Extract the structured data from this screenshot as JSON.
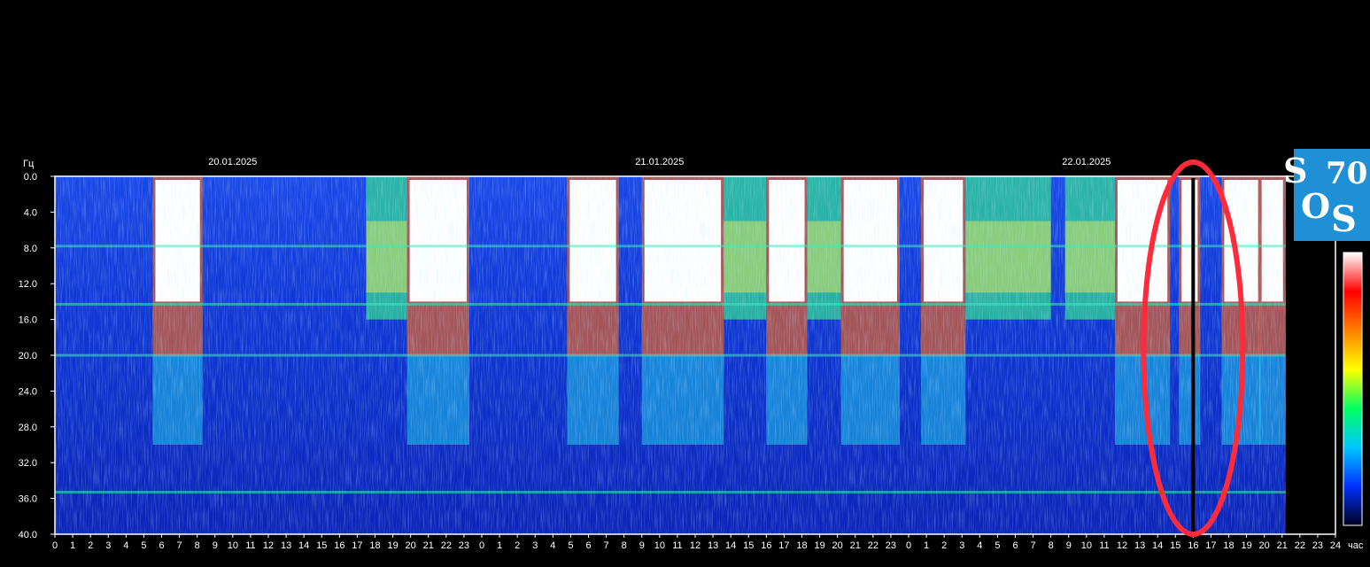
{
  "chart_data": {
    "type": "heatmap",
    "ylabel": "Гц",
    "xlabel": "час",
    "y_ticks": [
      "0.0",
      "4.0",
      "8.0",
      "12.0",
      "16.0",
      "20.0",
      "24.0",
      "28.0",
      "32.0",
      "36.0",
      "40.0"
    ],
    "ylim": [
      0,
      40
    ],
    "x_ticks": [
      "0",
      "1",
      "2",
      "3",
      "4",
      "5",
      "6",
      "7",
      "8",
      "9",
      "10",
      "11",
      "12",
      "13",
      "14",
      "15",
      "16",
      "17",
      "18",
      "19",
      "20",
      "21",
      "22",
      "23",
      "0",
      "1",
      "2",
      "3",
      "4",
      "5",
      "6",
      "7",
      "8",
      "9",
      "10",
      "11",
      "12",
      "13",
      "14",
      "15",
      "16",
      "17",
      "18",
      "19",
      "20",
      "21",
      "22",
      "23",
      "0",
      "1",
      "2",
      "3",
      "4",
      "5",
      "6",
      "7",
      "8",
      "9",
      "10",
      "11",
      "12",
      "13",
      "14",
      "15",
      "16",
      "17",
      "18",
      "19",
      "20",
      "21",
      "22",
      "23",
      "24"
    ],
    "dates": [
      {
        "label": "20.01.2025",
        "day_index": 0
      },
      {
        "label": "21.01.2025",
        "day_index": 1
      },
      {
        "label": "22.01.2025",
        "day_index": 2
      }
    ],
    "data_end_hour": 69.2,
    "bright_intervals_hours": [
      [
        5.5,
        8.3
      ],
      [
        19.8,
        23.3
      ],
      [
        28.8,
        31.7
      ],
      [
        33.0,
        37.6
      ],
      [
        40.0,
        42.3
      ],
      [
        44.2,
        47.5
      ],
      [
        48.7,
        51.2
      ],
      [
        59.6,
        62.7
      ],
      [
        63.2,
        64.4
      ],
      [
        65.6,
        67.8
      ],
      [
        67.7,
        69.2
      ]
    ],
    "moderate_intervals_hours": [
      [
        17.5,
        19.8
      ],
      [
        37.6,
        40.0
      ],
      [
        42.3,
        44.2
      ],
      [
        51.2,
        56.0
      ],
      [
        56.8,
        59.6
      ]
    ],
    "black_gap_hours": [
      63.9,
      64.1
    ],
    "horizontal_bands_hz": [
      7.8,
      14.3,
      20.0,
      35.3
    ],
    "colorbar": [
      "#000020",
      "#0030ff",
      "#00c8ff",
      "#00ff60",
      "#ffff00",
      "#ff8000",
      "#ff0000",
      "#ffffff"
    ],
    "annotation": {
      "shape": "ellipse",
      "color": "#ff2a3a",
      "center_hour": 64.0
    }
  },
  "logo": {
    "s_top": "S",
    "number": "70",
    "o": "O",
    "s_bottom": "S"
  }
}
